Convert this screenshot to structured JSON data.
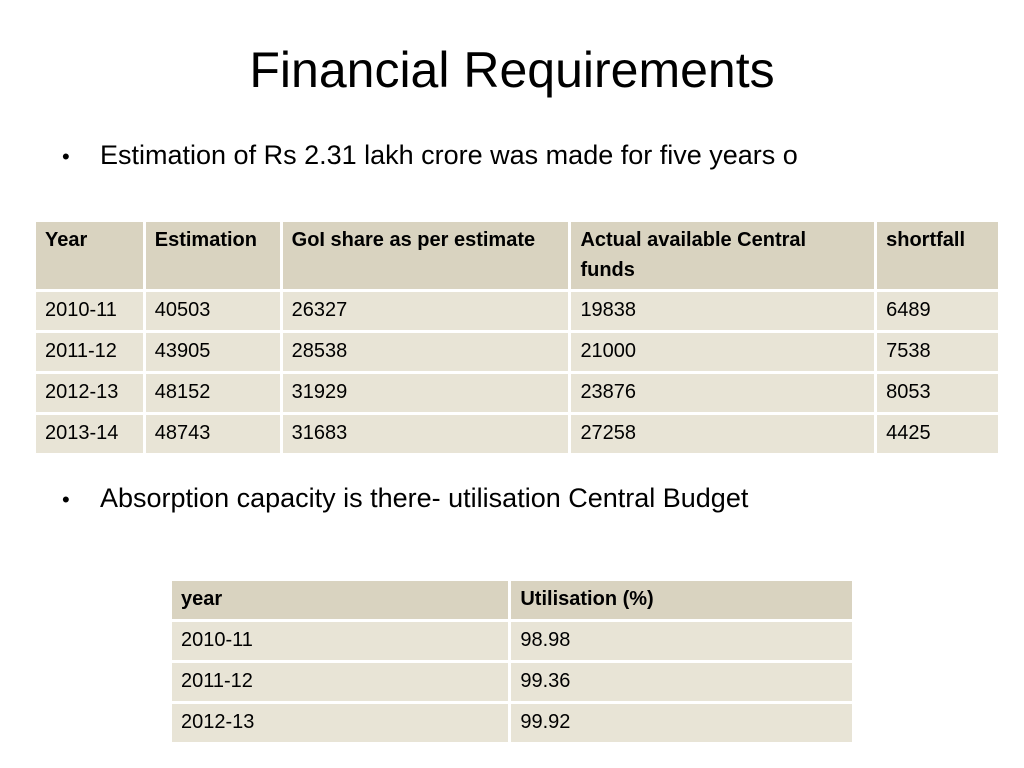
{
  "title": "Financial Requirements",
  "bullets": [
    "Estimation of Rs 2.31 lakh crore was made for five years o",
    "Absorption capacity is there- utilisation Central Budget"
  ],
  "estimation_table": {
    "headers": [
      "Year",
      "Estimation",
      "GoI share as per estimate",
      "Actual available Central funds",
      "shortfall"
    ],
    "rows": [
      [
        "2010-11",
        "40503",
        "26327",
        "19838",
        "6489"
      ],
      [
        "2011-12",
        "43905",
        "28538",
        "21000",
        "7538"
      ],
      [
        "2012-13",
        "48152",
        "31929",
        "23876",
        "8053"
      ],
      [
        "2013-14",
        "48743",
        "31683",
        "27258",
        "4425"
      ]
    ]
  },
  "utilisation_table": {
    "headers": [
      "year",
      "Utilisation (%)"
    ],
    "rows": [
      [
        "2010-11",
        "98.98"
      ],
      [
        "2011-12",
        "99.36"
      ],
      [
        "2012-13",
        "99.92"
      ]
    ]
  }
}
